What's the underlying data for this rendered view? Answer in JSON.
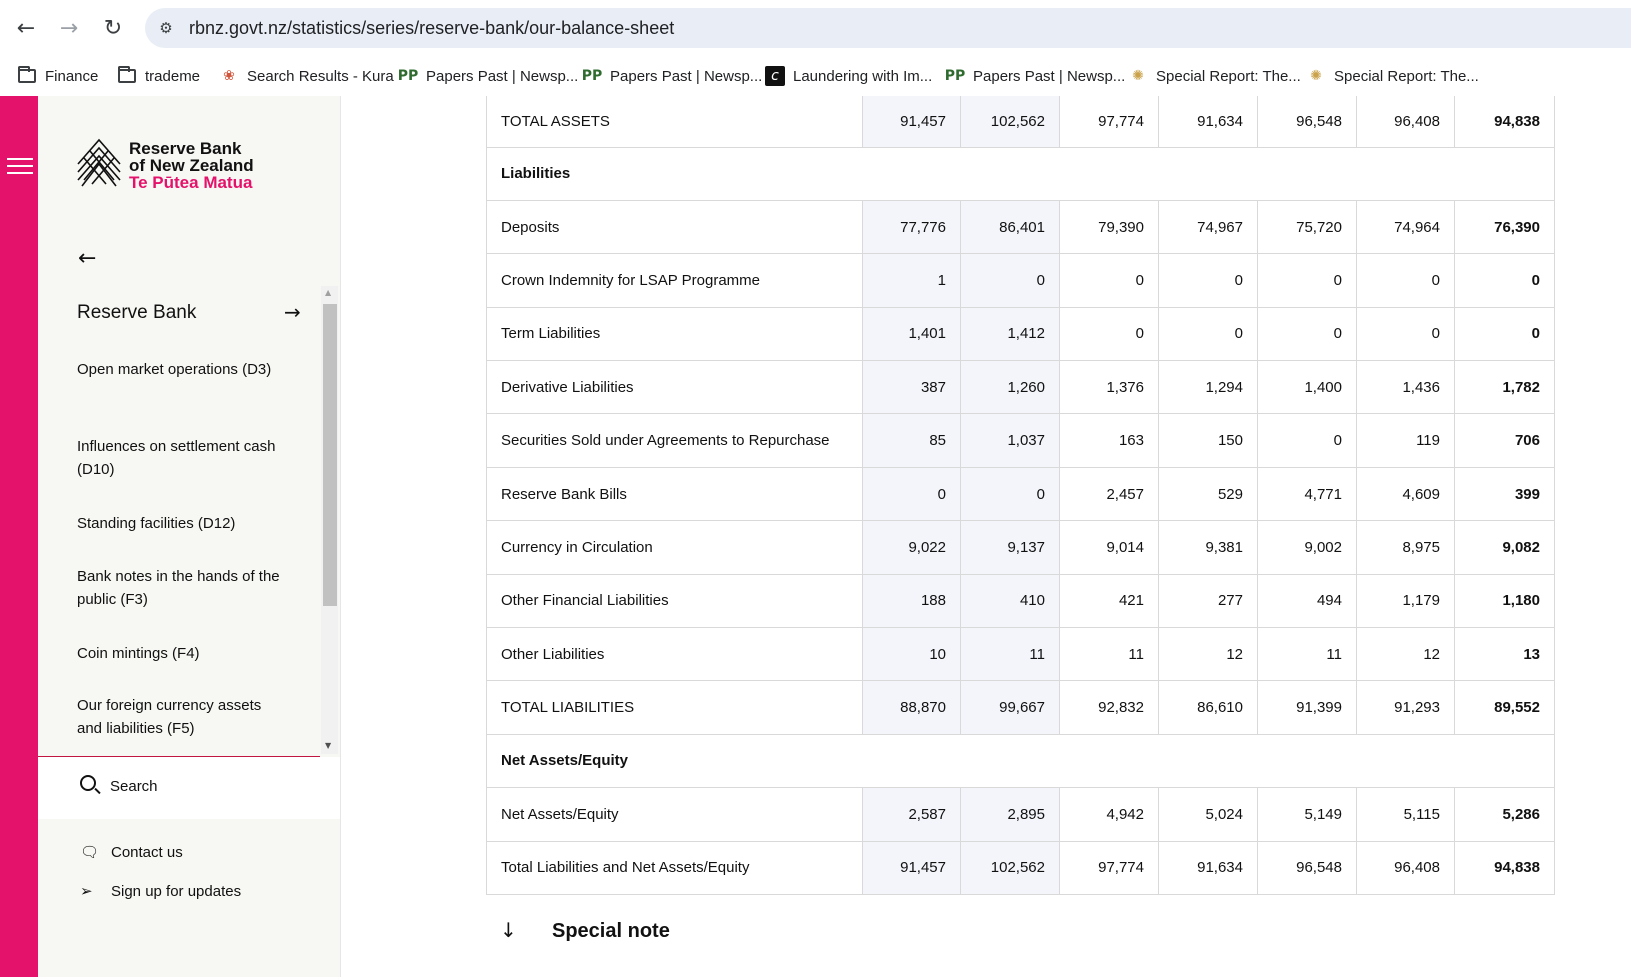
{
  "browser": {
    "url": "rbnz.govt.nz/statistics/series/reserve-bank/our-balance-sheet",
    "bookmarks": [
      {
        "label": "Finance",
        "icon": "folder-icon"
      },
      {
        "label": "trademe",
        "icon": "folder-icon"
      },
      {
        "label": "Search Results - Kura",
        "icon": "kura-icon"
      },
      {
        "label": "Papers Past | Newsp...",
        "icon": "papers-past-icon"
      },
      {
        "label": "Papers Past | Newsp...",
        "icon": "papers-past-icon"
      },
      {
        "label": "Laundering with Im...",
        "icon": "dark-logo-icon"
      },
      {
        "label": "Papers Past | Newsp...",
        "icon": "papers-past-icon"
      },
      {
        "label": "Special Report: The...",
        "icon": "compass-icon"
      },
      {
        "label": "Special Report: The...",
        "icon": "compass-icon"
      }
    ]
  },
  "brand": {
    "line1": "Reserve Bank",
    "line2": "of New Zealand",
    "line3": "Te Pūtea Matua",
    "accent": "#e4126b"
  },
  "sidebar": {
    "heading": "Reserve Bank",
    "items": [
      "Open market operations (D3)",
      "Influences on settlement cash (D10)",
      "Standing facilities (D12)",
      "Bank notes in the hands of the public (F3)",
      "Coin mintings (F4)",
      "Our foreign currency assets and liabilities (F5)"
    ],
    "search_label": "Search",
    "contact_label": "Contact us",
    "signup_label": "Sign up for updates"
  },
  "table": {
    "rows": [
      {
        "label": "TOTAL ASSETS",
        "values": [
          "91,457",
          "102,562",
          "97,774",
          "91,634",
          "96,548",
          "96,408",
          "94,838"
        ]
      },
      {
        "label": "Liabilities",
        "section": true
      },
      {
        "label": "Deposits",
        "values": [
          "77,776",
          "86,401",
          "79,390",
          "74,967",
          "75,720",
          "74,964",
          "76,390"
        ]
      },
      {
        "label": "Crown Indemnity for LSAP Programme",
        "values": [
          "1",
          "0",
          "0",
          "0",
          "0",
          "0",
          "0"
        ]
      },
      {
        "label": "Term Liabilities",
        "values": [
          "1,401",
          "1,412",
          "0",
          "0",
          "0",
          "0",
          "0"
        ]
      },
      {
        "label": "Derivative Liabilities",
        "values": [
          "387",
          "1,260",
          "1,376",
          "1,294",
          "1,400",
          "1,436",
          "1,782"
        ]
      },
      {
        "label": "Securities Sold under Agreements to Repurchase",
        "values": [
          "85",
          "1,037",
          "163",
          "150",
          "0",
          "119",
          "706"
        ]
      },
      {
        "label": "Reserve Bank Bills",
        "values": [
          "0",
          "0",
          "2,457",
          "529",
          "4,771",
          "4,609",
          "399"
        ]
      },
      {
        "label": "Currency in Circulation",
        "values": [
          "9,022",
          "9,137",
          "9,014",
          "9,381",
          "9,002",
          "8,975",
          "9,082"
        ]
      },
      {
        "label": "Other Financial Liabilities",
        "values": [
          "188",
          "410",
          "421",
          "277",
          "494",
          "1,179",
          "1,180"
        ]
      },
      {
        "label": "Other Liabilities",
        "values": [
          "10",
          "11",
          "11",
          "12",
          "11",
          "12",
          "13"
        ]
      },
      {
        "label": "TOTAL LIABILITIES",
        "values": [
          "88,870",
          "99,667",
          "92,832",
          "86,610",
          "91,399",
          "91,293",
          "89,552"
        ]
      },
      {
        "label": "Net Assets/Equity",
        "section": true
      },
      {
        "label": "Net Assets/Equity",
        "values": [
          "2,587",
          "2,895",
          "4,942",
          "5,024",
          "5,149",
          "5,115",
          "5,286"
        ]
      },
      {
        "label": "Total Liabilities and Net Assets/Equity",
        "values": [
          "91,457",
          "102,562",
          "97,774",
          "91,634",
          "96,548",
          "96,408",
          "94,838"
        ]
      }
    ]
  },
  "special_note": "Special note"
}
